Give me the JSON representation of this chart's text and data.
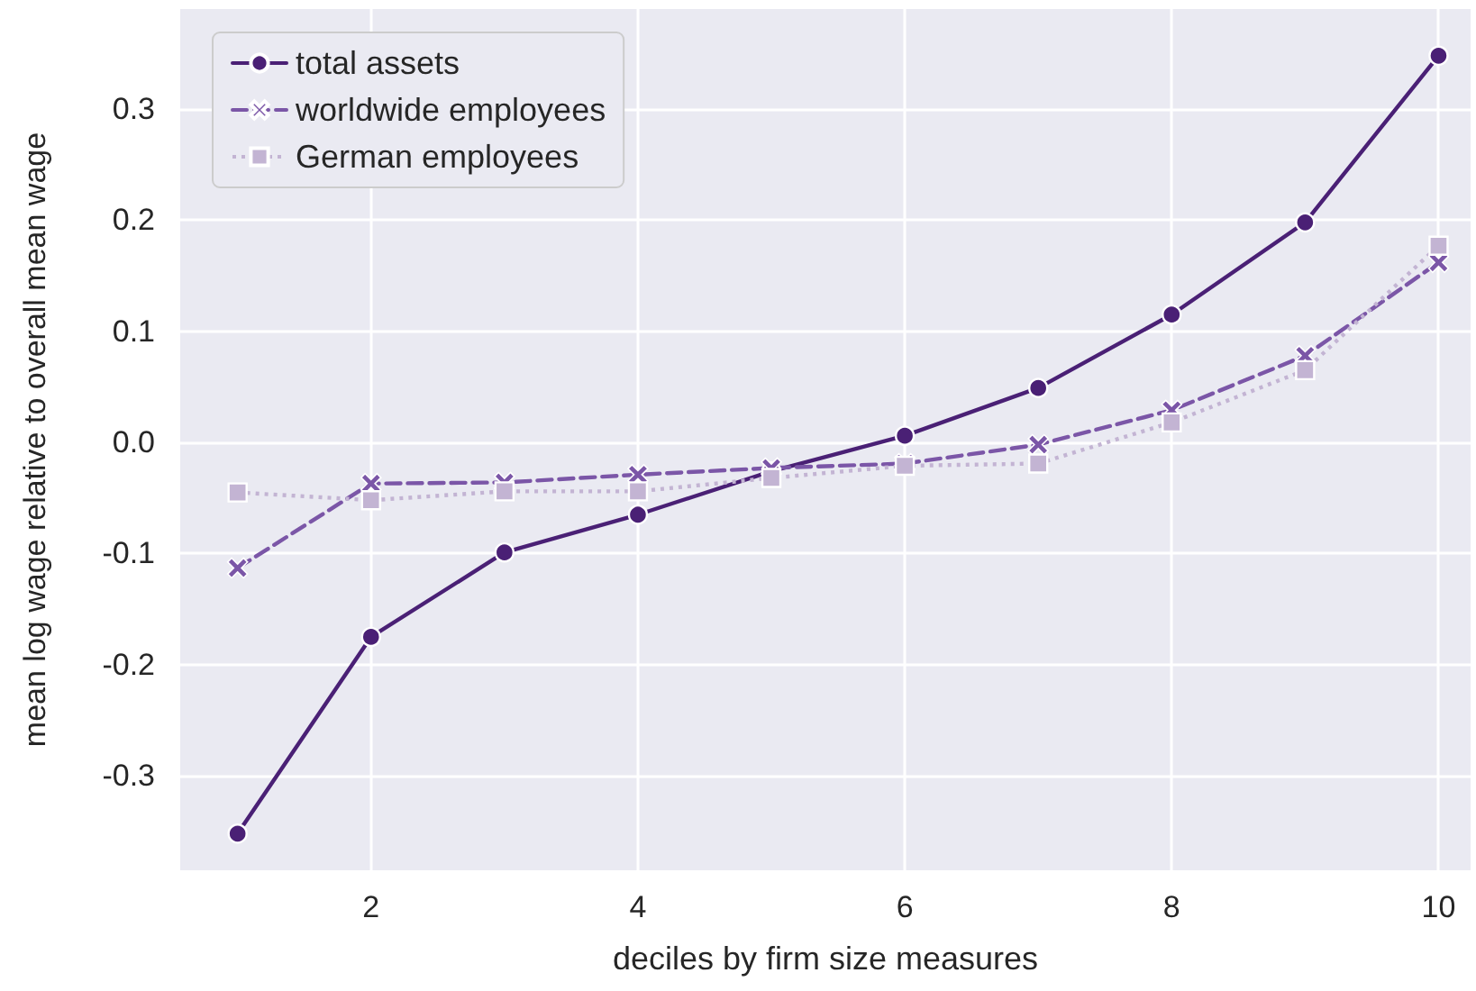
{
  "chart_data": {
    "type": "line",
    "xlabel": "deciles by firm size measures",
    "ylabel": "mean log wage relative to overall mean wage",
    "x": [
      1,
      2,
      3,
      4,
      5,
      6,
      7,
      8,
      9,
      10
    ],
    "series": [
      {
        "name": "total assets",
        "color": "#4a2075",
        "marker": "circle",
        "line_style": "solid",
        "values": [
          -0.352,
          -0.175,
          -0.099,
          -0.065,
          -0.026,
          0.006,
          0.049,
          0.115,
          0.198,
          0.348
        ]
      },
      {
        "name": "worldwide employees",
        "color": "#7b56a7",
        "marker": "cross",
        "line_style": "dashed",
        "values": [
          -0.113,
          -0.037,
          -0.036,
          -0.029,
          -0.023,
          -0.019,
          -0.002,
          0.029,
          0.078,
          0.162
        ]
      },
      {
        "name": "German employees",
        "color": "#c3b4d3",
        "marker": "square",
        "line_style": "dotted",
        "values": [
          -0.045,
          -0.052,
          -0.044,
          -0.044,
          -0.032,
          -0.021,
          -0.019,
          0.018,
          0.065,
          0.177
        ]
      }
    ],
    "xlim": [
      0.57,
      10.24
    ],
    "xticks": [
      2,
      4,
      6,
      8,
      10
    ],
    "ylim": [
      -0.385,
      0.39
    ],
    "yticks": [
      -0.3,
      -0.2,
      -0.1,
      {
        "value": 0,
        "label": "0.0"
      },
      0.1,
      0.2,
      0.3
    ],
    "grid": true,
    "legend": "top left"
  }
}
